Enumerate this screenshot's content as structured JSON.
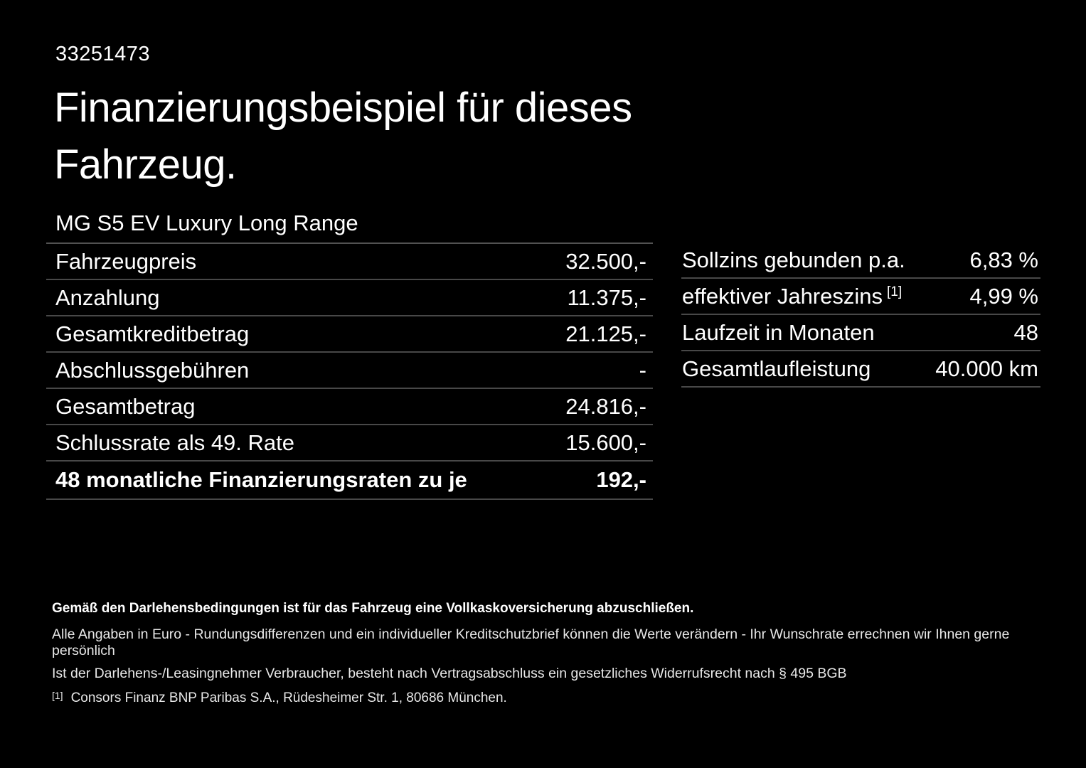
{
  "colors": {
    "background": "#000000",
    "text": "#ffffff",
    "separator": "#484848",
    "footer_text": "#e8e8e8"
  },
  "header": {
    "doc_id": "33251473",
    "title_line1": "Finanzierungsbeispiel für dieses",
    "title_line2": "Fahrzeug.",
    "vehicle": "MG S5 EV Luxury Long Range"
  },
  "left_table": {
    "rows": [
      {
        "label": "Fahrzeugpreis",
        "value": "32.500,-"
      },
      {
        "label": "Anzahlung",
        "value": "11.375,-"
      },
      {
        "label": "Gesamtkreditbetrag",
        "value": "21.125,-"
      },
      {
        "label": "Abschlussgebühren",
        "value": "-"
      },
      {
        "label": "Gesamtbetrag",
        "value": "24.816,-"
      },
      {
        "label": "Schlussrate als 49. Rate",
        "value": "15.600,-"
      },
      {
        "label": "48 monatliche Finanzierungsraten zu je",
        "value": "192,-"
      }
    ]
  },
  "right_table": {
    "rows": [
      {
        "label": "Sollzins gebunden p.a.",
        "value": "6,83 %"
      },
      {
        "label": "effektiver Jahreszins",
        "sup": "[1]",
        "value": "4,99 %"
      },
      {
        "label": "Laufzeit in Monaten",
        "value": "48"
      },
      {
        "label": "Gesamtlaufleistung",
        "value": "40.000 km"
      }
    ]
  },
  "footer": {
    "line1": "Gemäß den Darlehensbedingungen ist für das Fahrzeug eine Vollkaskoversicherung abzuschließen.",
    "line2": "Alle Angaben in Euro - Rundungsdifferenzen und ein individueller Kreditschutzbrief können die Werte verändern - Ihr Wunschrate errechnen wir Ihnen gerne persönlich",
    "line3": "Ist der Darlehens-/Leasingnehmer Verbraucher, besteht nach Vertragsabschluss ein gesetzliches Widerrufsrecht nach § 495 BGB",
    "footnote_marker": "[1]",
    "footnote_text": "Consors Finanz BNP Paribas S.A., Rüdesheimer Str. 1, 80686 München."
  }
}
